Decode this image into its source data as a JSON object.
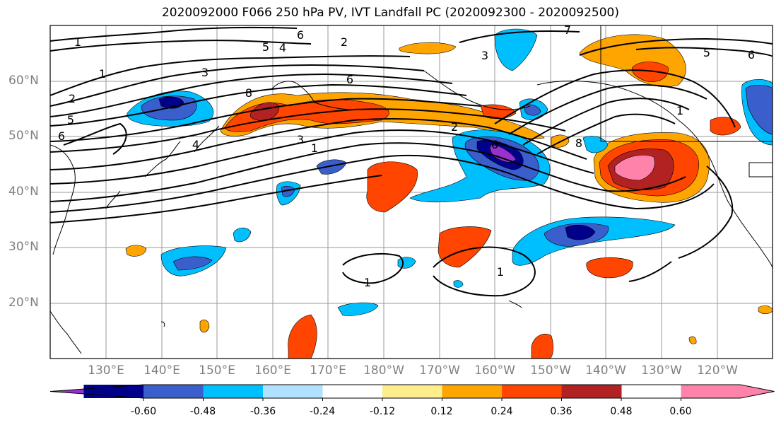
{
  "title": "2020092000 F066 250 hPa PV, IVT Landfall PC (2020092300 - 2020092500)",
  "lat_labels": [
    "60°N",
    "50°N",
    "40°N",
    "30°N",
    "20°N"
  ],
  "lon_labels": [
    "130°E",
    "140°E",
    "150°E",
    "160°E",
    "170°E",
    "180°W",
    "170°W",
    "160°W",
    "150°W",
    "140°W",
    "130°W",
    "120°W"
  ],
  "contour_labels": [
    "1",
    "1",
    "2",
    "5",
    "6",
    "3",
    "4",
    "8",
    "3",
    "1",
    "2",
    "6",
    "5",
    "4",
    "6",
    "2",
    "3",
    "6",
    "7",
    "5",
    "6",
    "8",
    "1",
    "1",
    "1"
  ],
  "colorbar": {
    "colors": [
      "#9932CC",
      "#00008B",
      "#3A5FCD",
      "#00BFFF",
      "#B0E2FF",
      "#FFFFFF",
      "#FFEC8B",
      "#FFA500",
      "#FF4500",
      "#B22222",
      "#FF82AB"
    ],
    "tick_labels": [
      "-0.60",
      "-0.48",
      "-0.36",
      "-0.24",
      "-0.12",
      "0.12",
      "0.24",
      "0.36",
      "0.48",
      "0.60"
    ]
  }
}
